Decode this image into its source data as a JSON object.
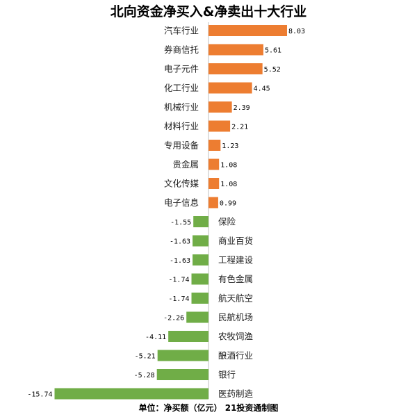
{
  "chart_data": {
    "type": "bar",
    "orientation": "horizontal",
    "title": "北向资金净买入&净卖出十大行业",
    "footer": "单位：净买额（亿元）    21投资通制图",
    "colors": {
      "positive": "#ED7D31",
      "negative": "#70AD47"
    },
    "categories": [
      "汽车行业",
      "券商信托",
      "电子元件",
      "化工行业",
      "机械行业",
      "材料行业",
      "专用设备",
      "贵金属",
      "文化传媒",
      "电子信息",
      "保险",
      "商业百货",
      "工程建设",
      "有色金属",
      "航天航空",
      "民航机场",
      "农牧饲渔",
      "酿酒行业",
      "银行",
      "医药制造"
    ],
    "values": [
      8.03,
      5.61,
      5.52,
      4.45,
      2.39,
      2.21,
      1.23,
      1.08,
      1.08,
      0.99,
      -1.55,
      -1.63,
      -1.63,
      -1.74,
      -1.74,
      -2.26,
      -4.11,
      -5.21,
      -5.28,
      -15.74
    ],
    "value_labels": [
      "8.03",
      "5.61",
      "5.52",
      "4.45",
      "2.39",
      "2.21",
      "1.23",
      "1.08",
      "1.08",
      "0.99",
      "-1.55",
      "-1.63",
      "-1.63",
      "-1.74",
      "-1.74",
      "-2.26",
      "-4.11",
      "-5.21",
      "-5.28",
      "-15.74"
    ],
    "grid": false,
    "legend": "none"
  }
}
